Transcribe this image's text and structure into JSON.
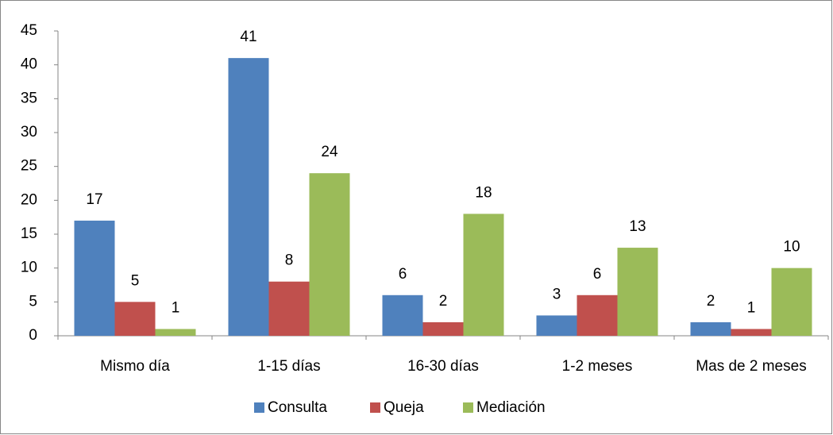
{
  "chart_data": {
    "type": "bar",
    "categories": [
      "Mismo día",
      "1-15 días",
      "16-30 días",
      "1-2 meses",
      "Mas de 2 meses"
    ],
    "series": [
      {
        "name": "Consulta",
        "color": "#4f81bd",
        "values": [
          17,
          41,
          6,
          3,
          2
        ]
      },
      {
        "name": "Queja",
        "color": "#c0504d",
        "values": [
          5,
          8,
          2,
          6,
          1
        ]
      },
      {
        "name": "Mediación",
        "color": "#9bbb59",
        "values": [
          1,
          24,
          18,
          13,
          10
        ]
      }
    ],
    "ylim": [
      0,
      45
    ],
    "yticks": [
      0,
      5,
      10,
      15,
      20,
      25,
      30,
      35,
      40,
      45
    ],
    "grid": false,
    "legend": "bottom"
  }
}
